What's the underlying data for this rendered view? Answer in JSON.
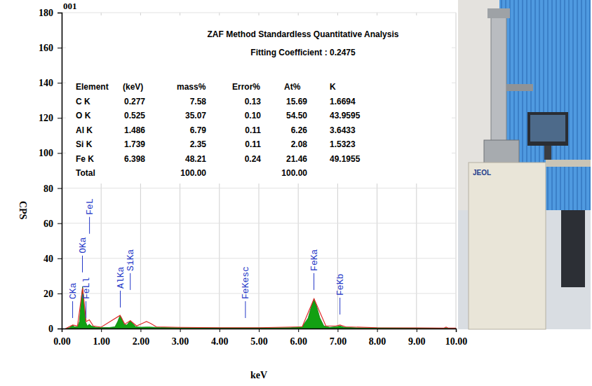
{
  "chart_data": {
    "type": "line",
    "title": "001",
    "xlabel": "keV",
    "ylabel": "CPS",
    "xlim": [
      0,
      10
    ],
    "ylim": [
      0,
      180
    ],
    "xticks": [
      {
        "value": 0,
        "label": "0.00"
      },
      {
        "value": 1,
        "label": "1.00"
      },
      {
        "value": 2,
        "label": "2.00"
      },
      {
        "value": 3,
        "label": "3.00"
      },
      {
        "value": 4,
        "label": "4.00"
      },
      {
        "value": 5,
        "label": "5.00"
      },
      {
        "value": 6,
        "label": "6.00"
      },
      {
        "value": 7,
        "label": "7.00"
      },
      {
        "value": 8,
        "label": "8.00"
      },
      {
        "value": 9,
        "label": "9.00"
      },
      {
        "value": 10,
        "label": "10.00"
      }
    ],
    "yticks": [
      0,
      20,
      40,
      60,
      80,
      100,
      120,
      140,
      160,
      180
    ],
    "grid": true,
    "series": [
      {
        "type": "area",
        "color": "#12a012",
        "x": [
          0.1,
          0.2,
          0.25,
          0.28,
          0.32,
          0.4,
          0.45,
          0.5,
          0.53,
          0.56,
          0.6,
          0.65,
          0.7,
          0.75,
          0.85,
          1.0,
          1.2,
          1.35,
          1.42,
          1.48,
          1.52,
          1.58,
          1.65,
          1.74,
          1.8,
          1.88,
          2.0,
          2.2,
          2.5,
          3.0,
          4.0,
          5.0,
          5.8,
          6.1,
          6.25,
          6.35,
          6.4,
          6.45,
          6.55,
          6.65,
          6.8,
          7.0,
          7.06,
          7.15,
          7.5,
          8.5,
          9.5,
          10.0
        ],
        "values": [
          0,
          0.5,
          1.5,
          2,
          1,
          1,
          4,
          18,
          24,
          16,
          4,
          1.5,
          2.5,
          1.5,
          0.8,
          0.6,
          0.6,
          1,
          4,
          7.5,
          6,
          2.5,
          2,
          4.5,
          3,
          1,
          0.8,
          0.9,
          0.6,
          0.5,
          0.4,
          0.4,
          0.5,
          1,
          6,
          14,
          17,
          14,
          6,
          1.5,
          0.7,
          1.2,
          1.5,
          0.8,
          0.4,
          0.3,
          0.2,
          0
        ]
      },
      {
        "type": "line",
        "color": "#e02828",
        "x": [
          0.1,
          0.28,
          0.4,
          0.53,
          0.62,
          0.7,
          0.8,
          1.0,
          1.48,
          1.6,
          1.74,
          1.9,
          2.05,
          2.15,
          2.25,
          2.4,
          3.0,
          4.0,
          5.0,
          6.1,
          6.4,
          6.7,
          6.95,
          7.06,
          7.2,
          8.0,
          9.0,
          9.7,
          9.75,
          9.8,
          10.0
        ],
        "values": [
          0,
          2,
          1.5,
          23,
          4,
          5,
          1.5,
          0.8,
          7.5,
          2.5,
          4.5,
          1.5,
          3,
          4,
          3,
          1,
          0.7,
          0.5,
          0.5,
          1,
          17,
          1.5,
          1.5,
          2,
          1,
          0.5,
          0.4,
          0.3,
          0.8,
          0.3,
          0.3
        ]
      }
    ],
    "annotations": [
      {
        "x": 0.277,
        "y": 6,
        "text": "CKa"
      },
      {
        "x": 0.615,
        "y": 6,
        "text": "FeLl"
      },
      {
        "x": 0.525,
        "y": 32,
        "text": "OKa"
      },
      {
        "x": 0.705,
        "y": 54,
        "text": "FeL"
      },
      {
        "x": 1.486,
        "y": 12,
        "text": "AlKa"
      },
      {
        "x": 1.739,
        "y": 22,
        "text": "SiKa"
      },
      {
        "x": 4.66,
        "y": 6,
        "text": "FeKesc"
      },
      {
        "x": 6.398,
        "y": 22,
        "text": "FeKa"
      },
      {
        "x": 7.058,
        "y": 8,
        "text": "FeKb"
      }
    ]
  },
  "table": {
    "title": "ZAF Method Standardless Quantitative Analysis",
    "subtitle": "Fitting Coefficient : 0.2475",
    "columns": [
      "Element",
      "(keV)",
      "mass%",
      "Error%",
      "At%",
      "K"
    ],
    "rows": [
      [
        "C K",
        "0.277",
        "7.58",
        "0.13",
        "15.69",
        "1.6694"
      ],
      [
        "O K",
        "0.525",
        "35.07",
        "0.10",
        "54.50",
        "43.9595"
      ],
      [
        "Al K",
        "1.486",
        "6.79",
        "0.11",
        "6.26",
        "3.6433"
      ],
      [
        "Si K",
        "1.739",
        "2.35",
        "0.11",
        "2.08",
        "1.5323"
      ],
      [
        "Fe K",
        "6.398",
        "48.21",
        "0.24",
        "21.46",
        "49.1955"
      ]
    ],
    "total": {
      "label": "Total",
      "mass": "100.00",
      "at": "100.00"
    }
  },
  "photo": {
    "label": "JEOL"
  }
}
